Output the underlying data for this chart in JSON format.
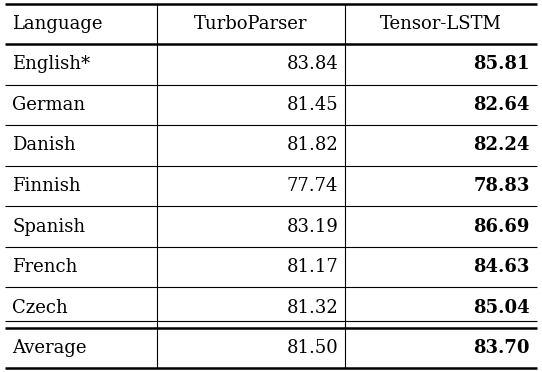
{
  "columns": [
    "Language",
    "TurboParser",
    "Tensor-LSTM"
  ],
  "rows": [
    [
      "English*",
      "83.84",
      "85.81"
    ],
    [
      "German",
      "81.45",
      "82.64"
    ],
    [
      "Danish",
      "81.82",
      "82.24"
    ],
    [
      "Finnish",
      "77.74",
      "78.83"
    ],
    [
      "Spanish",
      "83.19",
      "86.69"
    ],
    [
      "French",
      "81.17",
      "84.63"
    ],
    [
      "Czech",
      "81.32",
      "85.04"
    ]
  ],
  "average_row": [
    "Average",
    "81.50",
    "83.70"
  ],
  "col_bold": [
    false,
    false,
    true
  ],
  "avg_bold": [
    false,
    false,
    true
  ],
  "bg_color": "#ffffff",
  "header_fontsize": 13,
  "cell_fontsize": 13,
  "figsize": [
    5.42,
    3.72
  ],
  "dpi": 100
}
